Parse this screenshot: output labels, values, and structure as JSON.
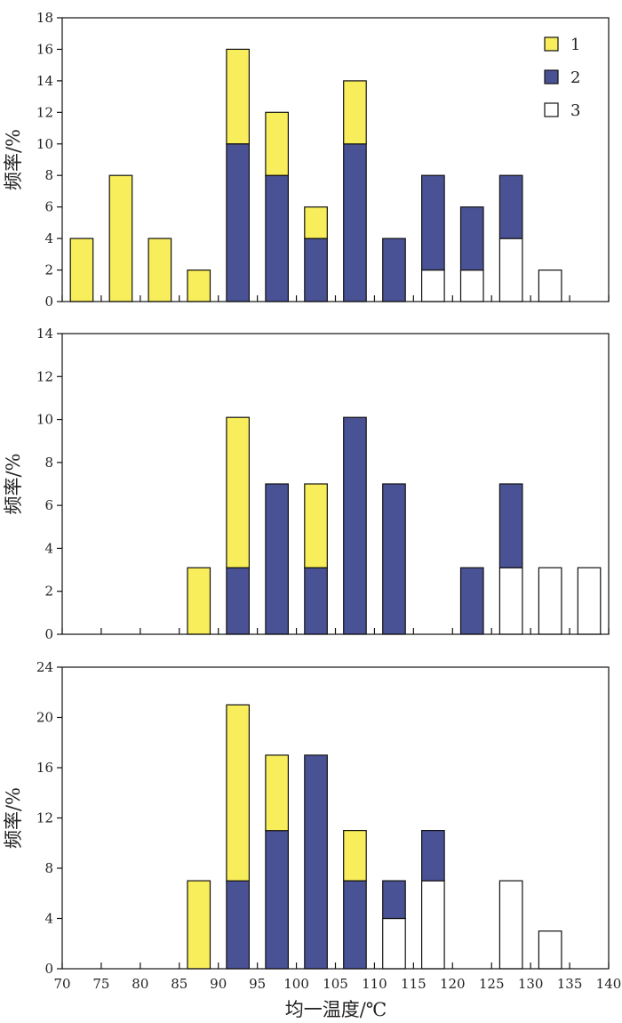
{
  "chart_data": {
    "type": "bar",
    "stacked": true,
    "xlabel": "均一温度/℃",
    "xlim": [
      70,
      140
    ],
    "x_ticks": [
      "70",
      "75",
      "80",
      "85",
      "90",
      "95",
      "100",
      "105",
      "110",
      "115",
      "120",
      "125",
      "130",
      "135",
      "140"
    ],
    "bin_width": 5,
    "colors": {
      "1": "#f8ed5a",
      "2": "#4a5296",
      "3": "#ffffff"
    },
    "legend": [
      {
        "label": "1",
        "color": "#f8ed5a"
      },
      {
        "label": "2",
        "color": "#4a5296"
      },
      {
        "label": "3",
        "color": "#ffffff"
      }
    ],
    "panels": [
      {
        "ylabel": "频率/%",
        "ylim": [
          0,
          18
        ],
        "y_ticks": [
          "0",
          "2",
          "4",
          "6",
          "8",
          "10",
          "12",
          "14",
          "16",
          "18"
        ],
        "bins": [
          {
            "x": 72.5,
            "s3": 0,
            "s2": 0,
            "s1": 4
          },
          {
            "x": 77.5,
            "s3": 0,
            "s2": 0,
            "s1": 8
          },
          {
            "x": 82.5,
            "s3": 0,
            "s2": 0,
            "s1": 4
          },
          {
            "x": 87.5,
            "s3": 0,
            "s2": 0,
            "s1": 2
          },
          {
            "x": 92.5,
            "s3": 0,
            "s2": 10,
            "s1": 6
          },
          {
            "x": 97.5,
            "s3": 0,
            "s2": 8,
            "s1": 4
          },
          {
            "x": 102.5,
            "s3": 0,
            "s2": 4,
            "s1": 2
          },
          {
            "x": 107.5,
            "s3": 0,
            "s2": 10,
            "s1": 4
          },
          {
            "x": 112.5,
            "s3": 0,
            "s2": 4,
            "s1": 0
          },
          {
            "x": 117.5,
            "s3": 2,
            "s2": 6,
            "s1": 0
          },
          {
            "x": 122.5,
            "s3": 2,
            "s2": 4,
            "s1": 0
          },
          {
            "x": 127.5,
            "s3": 4,
            "s2": 4,
            "s1": 0
          },
          {
            "x": 132.5,
            "s3": 2,
            "s2": 0,
            "s1": 0
          }
        ]
      },
      {
        "ylabel": "频率/%",
        "ylim": [
          0,
          14
        ],
        "y_ticks": [
          "0",
          "2",
          "4",
          "6",
          "8",
          "10",
          "12",
          "14"
        ],
        "bins": [
          {
            "x": 87.5,
            "s3": 0,
            "s2": 0,
            "s1": 3.1
          },
          {
            "x": 92.5,
            "s3": 0,
            "s2": 3.1,
            "s1": 7.0
          },
          {
            "x": 97.5,
            "s3": 0,
            "s2": 7.0,
            "s1": 0
          },
          {
            "x": 102.5,
            "s3": 0,
            "s2": 3.1,
            "s1": 3.9
          },
          {
            "x": 107.5,
            "s3": 0,
            "s2": 10.1,
            "s1": 0
          },
          {
            "x": 112.5,
            "s3": 0,
            "s2": 7.0,
            "s1": 0
          },
          {
            "x": 122.5,
            "s3": 0,
            "s2": 3.1,
            "s1": 0
          },
          {
            "x": 127.5,
            "s3": 3.1,
            "s2": 3.9,
            "s1": 0
          },
          {
            "x": 132.5,
            "s3": 3.1,
            "s2": 0,
            "s1": 0
          },
          {
            "x": 137.5,
            "s3": 3.1,
            "s2": 0,
            "s1": 0
          }
        ]
      },
      {
        "ylabel": "频率/%",
        "ylim": [
          0,
          24
        ],
        "y_ticks": [
          "0",
          "4",
          "8",
          "12",
          "16",
          "20",
          "24"
        ],
        "bins": [
          {
            "x": 87.5,
            "s3": 0,
            "s2": 0,
            "s1": 7
          },
          {
            "x": 92.5,
            "s3": 0,
            "s2": 7,
            "s1": 14
          },
          {
            "x": 97.5,
            "s3": 0,
            "s2": 11,
            "s1": 6
          },
          {
            "x": 102.5,
            "s3": 0,
            "s2": 17,
            "s1": 0
          },
          {
            "x": 107.5,
            "s3": 0,
            "s2": 7,
            "s1": 4
          },
          {
            "x": 112.5,
            "s3": 4,
            "s2": 3,
            "s1": 0
          },
          {
            "x": 117.5,
            "s3": 7,
            "s2": 4,
            "s1": 0
          },
          {
            "x": 127.5,
            "s3": 7,
            "s2": 0,
            "s1": 0
          },
          {
            "x": 132.5,
            "s3": 3,
            "s2": 0,
            "s1": 0
          }
        ]
      }
    ]
  }
}
